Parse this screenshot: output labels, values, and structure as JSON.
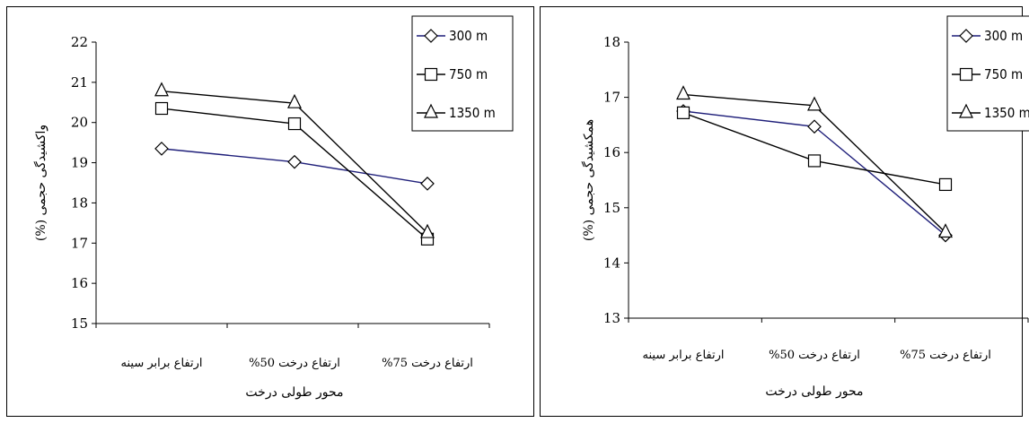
{
  "chart_data": [
    {
      "type": "line",
      "categories": [
        "ارتفاع برابر سینه",
        "ارتفاع درخت 50%",
        "ارتفاع درخت 75%"
      ],
      "ylabel": "واکشیدگی حجمی (%)",
      "xlabel": "محور طولی درخت",
      "ylim": [
        15,
        22
      ],
      "yticks": [
        15,
        16,
        17,
        18,
        19,
        20,
        21,
        22
      ],
      "legend_position": "top-right",
      "series": [
        {
          "name": "300 m",
          "marker": "diamond",
          "color": "#1f1f7a",
          "values": [
            19.35,
            19.02,
            18.48
          ]
        },
        {
          "name": "750 m",
          "marker": "square",
          "color": "#000000",
          "values": [
            20.35,
            19.97,
            17.1
          ]
        },
        {
          "name": "1350 m",
          "marker": "triangle",
          "color": "#000000",
          "values": [
            20.78,
            20.48,
            17.25
          ]
        }
      ]
    },
    {
      "type": "line",
      "categories": [
        "ارتفاع برابر سینه",
        "ارتفاع درخت 50%",
        "ارتفاع درخت 75%"
      ],
      "ylabel": "همکشیدگی حجمی (%)",
      "xlabel": "محور طولی درخت",
      "ylim": [
        13,
        18
      ],
      "yticks": [
        13,
        14,
        15,
        16,
        17,
        18
      ],
      "legend_position": "top-right",
      "series": [
        {
          "name": "300 m",
          "marker": "diamond",
          "color": "#1f1f7a",
          "values": [
            16.75,
            16.47,
            14.5
          ]
        },
        {
          "name": "750 m",
          "marker": "square",
          "color": "#000000",
          "values": [
            16.72,
            15.85,
            15.42
          ]
        },
        {
          "name": "1350 m",
          "marker": "triangle",
          "color": "#000000",
          "values": [
            17.05,
            16.85,
            14.55
          ]
        }
      ]
    }
  ]
}
